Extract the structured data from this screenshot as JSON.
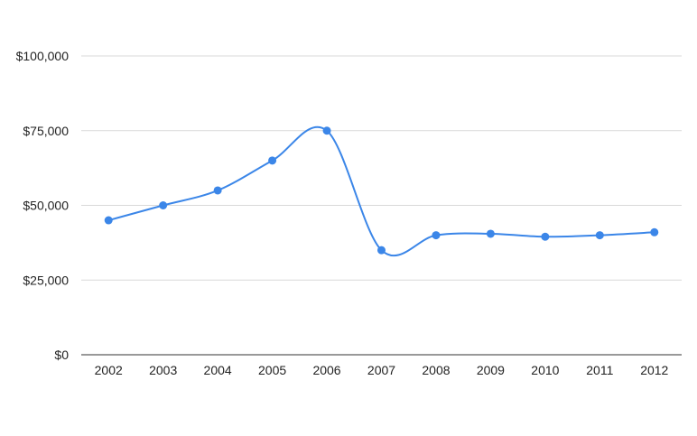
{
  "chart_data": {
    "type": "line",
    "title": "",
    "xlabel": "",
    "ylabel": "",
    "x": [
      "2002",
      "2003",
      "2004",
      "2005",
      "2006",
      "2007",
      "2008",
      "2009",
      "2010",
      "2011",
      "2012"
    ],
    "series": [
      {
        "values": [
          45000,
          50000,
          55000,
          65000,
          75000,
          35000,
          40000,
          40500,
          39500,
          40000,
          41000
        ]
      }
    ],
    "ylim": [
      0,
      100000
    ],
    "yticks": [
      0,
      25000,
      50000,
      75000,
      100000
    ],
    "ytick_labels": [
      "$0",
      "$25,000",
      "$50,000",
      "$75,000",
      "$100,000"
    ],
    "grid": true,
    "legend": "none",
    "colors": {
      "series": "#3b86e8",
      "grid": "#d9d9d9",
      "axis": "#333333",
      "text": "#222222"
    },
    "smooth": true
  }
}
